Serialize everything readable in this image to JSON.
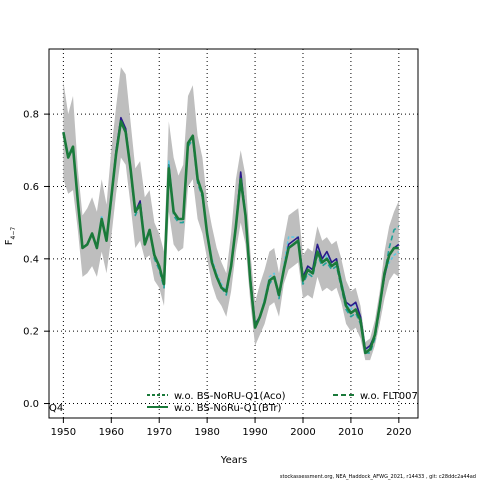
{
  "chart_data": {
    "type": "line",
    "xlabel": "Years",
    "ylabel_main": "F",
    "ylabel_sub": "4−7",
    "corner_label": "Q4",
    "footer": "stockassessment.org,  NEA_Haddock_AFWG_2021,  r14433 ,  git: c28ddc2a44ad",
    "xlim": [
      1947,
      2024
    ],
    "ylim": [
      -0.04,
      0.98
    ],
    "x_ticks": [
      1950,
      1960,
      1970,
      1980,
      1990,
      2000,
      2010,
      2020
    ],
    "y_ticks": [
      0.0,
      0.2,
      0.4,
      0.6,
      0.8
    ],
    "y_tick_labels": [
      "0.0",
      "0.2",
      "0.4",
      "0.6",
      "0.8"
    ],
    "grid": true,
    "legend_position": "bottom",
    "x": [
      1950,
      1951,
      1952,
      1953,
      1954,
      1955,
      1956,
      1957,
      1958,
      1959,
      1960,
      1961,
      1962,
      1963,
      1964,
      1965,
      1966,
      1967,
      1968,
      1969,
      1970,
      1971,
      1972,
      1973,
      1974,
      1975,
      1976,
      1977,
      1978,
      1979,
      1980,
      1981,
      1982,
      1983,
      1984,
      1985,
      1986,
      1987,
      1988,
      1989,
      1990,
      1991,
      1992,
      1993,
      1994,
      1995,
      1996,
      1997,
      1998,
      1999,
      2000,
      2001,
      2002,
      2003,
      2004,
      2005,
      2006,
      2007,
      2008,
      2009,
      2010,
      2011,
      2012,
      2013,
      2014,
      2015,
      2016,
      2017,
      2018,
      2019,
      2020
    ],
    "band": {
      "color": "#bebebe",
      "upper": [
        0.89,
        0.8,
        0.85,
        0.65,
        0.52,
        0.54,
        0.57,
        0.53,
        0.62,
        0.55,
        0.7,
        0.82,
        0.93,
        0.91,
        0.78,
        0.65,
        0.67,
        0.57,
        0.59,
        0.5,
        0.47,
        0.42,
        0.78,
        0.68,
        0.63,
        0.66,
        0.85,
        0.88,
        0.74,
        0.68,
        0.56,
        0.49,
        0.43,
        0.39,
        0.36,
        0.47,
        0.62,
        0.7,
        0.63,
        0.42,
        0.28,
        0.33,
        0.37,
        0.42,
        0.43,
        0.36,
        0.45,
        0.52,
        0.53,
        0.54,
        0.41,
        0.43,
        0.42,
        0.49,
        0.45,
        0.46,
        0.44,
        0.45,
        0.4,
        0.34,
        0.31,
        0.32,
        0.27,
        0.17,
        0.18,
        0.23,
        0.31,
        0.42,
        0.49,
        0.53,
        0.56
      ],
      "lower": [
        0.62,
        0.58,
        0.59,
        0.48,
        0.35,
        0.36,
        0.38,
        0.35,
        0.42,
        0.36,
        0.46,
        0.58,
        0.68,
        0.66,
        0.55,
        0.43,
        0.45,
        0.4,
        0.41,
        0.34,
        0.32,
        0.27,
        0.53,
        0.44,
        0.42,
        0.43,
        0.6,
        0.62,
        0.51,
        0.47,
        0.4,
        0.33,
        0.29,
        0.27,
        0.24,
        0.31,
        0.42,
        0.5,
        0.44,
        0.28,
        0.16,
        0.19,
        0.22,
        0.27,
        0.28,
        0.24,
        0.33,
        0.37,
        0.38,
        0.39,
        0.29,
        0.3,
        0.29,
        0.35,
        0.31,
        0.32,
        0.31,
        0.32,
        0.28,
        0.22,
        0.2,
        0.21,
        0.18,
        0.12,
        0.12,
        0.16,
        0.22,
        0.29,
        0.34,
        0.36,
        0.35
      ]
    },
    "series": [
      {
        "name": "w.o. BS-NoRU-Q1(Aco)",
        "color": "#60c8e0",
        "dash": "3,2",
        "values": [
          0.75,
          0.69,
          0.71,
          0.56,
          0.43,
          0.44,
          0.47,
          0.43,
          0.52,
          0.45,
          0.57,
          0.7,
          0.78,
          0.76,
          0.65,
          0.53,
          0.56,
          0.45,
          0.48,
          0.41,
          0.38,
          0.33,
          0.67,
          0.53,
          0.51,
          0.51,
          0.72,
          0.74,
          0.62,
          0.58,
          0.48,
          0.4,
          0.36,
          0.33,
          0.31,
          0.38,
          0.5,
          0.63,
          0.53,
          0.35,
          0.22,
          0.24,
          0.29,
          0.35,
          0.36,
          0.3,
          0.38,
          0.46,
          0.46,
          0.46,
          0.35,
          0.38,
          0.37,
          0.44,
          0.39,
          0.41,
          0.39,
          0.4,
          0.34,
          0.28,
          0.26,
          0.28,
          0.24,
          0.15,
          0.15,
          0.19,
          0.27,
          0.36,
          0.39,
          0.41,
          0.42
        ]
      },
      {
        "name": "w.o. BS-NoRu-Q1(BTr)",
        "color": "#2a1a8a",
        "dash": "",
        "values": [
          0.75,
          0.68,
          0.71,
          0.56,
          0.43,
          0.44,
          0.47,
          0.43,
          0.51,
          0.45,
          0.57,
          0.7,
          0.79,
          0.76,
          0.65,
          0.53,
          0.56,
          0.44,
          0.48,
          0.41,
          0.38,
          0.33,
          0.66,
          0.53,
          0.51,
          0.51,
          0.72,
          0.74,
          0.62,
          0.58,
          0.47,
          0.39,
          0.35,
          0.32,
          0.31,
          0.38,
          0.49,
          0.64,
          0.52,
          0.35,
          0.22,
          0.24,
          0.28,
          0.34,
          0.35,
          0.3,
          0.37,
          0.44,
          0.45,
          0.46,
          0.35,
          0.38,
          0.37,
          0.44,
          0.4,
          0.42,
          0.39,
          0.4,
          0.33,
          0.28,
          0.27,
          0.28,
          0.24,
          0.15,
          0.16,
          0.19,
          0.27,
          0.35,
          0.41,
          0.43,
          0.44
        ]
      },
      {
        "name": "w.o. FLT007",
        "color": "#1ea39a",
        "dash": "5,3",
        "values": [
          0.75,
          0.68,
          0.7,
          0.56,
          0.43,
          0.44,
          0.47,
          0.43,
          0.51,
          0.45,
          0.56,
          0.69,
          0.78,
          0.75,
          0.64,
          0.52,
          0.55,
          0.44,
          0.48,
          0.4,
          0.37,
          0.32,
          0.66,
          0.52,
          0.5,
          0.5,
          0.71,
          0.73,
          0.61,
          0.57,
          0.47,
          0.39,
          0.35,
          0.32,
          0.3,
          0.38,
          0.49,
          0.61,
          0.52,
          0.34,
          0.21,
          0.24,
          0.28,
          0.33,
          0.35,
          0.29,
          0.37,
          0.43,
          0.44,
          0.45,
          0.33,
          0.36,
          0.35,
          0.41,
          0.38,
          0.39,
          0.37,
          0.38,
          0.32,
          0.26,
          0.24,
          0.25,
          0.22,
          0.14,
          0.14,
          0.18,
          0.26,
          0.36,
          0.43,
          0.48,
          0.49
        ]
      },
      {
        "name": "",
        "color": "#1a7a3a",
        "dash": "",
        "values": [
          0.75,
          0.68,
          0.71,
          0.56,
          0.43,
          0.44,
          0.47,
          0.43,
          0.51,
          0.45,
          0.57,
          0.69,
          0.78,
          0.75,
          0.65,
          0.53,
          0.55,
          0.44,
          0.48,
          0.41,
          0.38,
          0.33,
          0.65,
          0.53,
          0.51,
          0.51,
          0.72,
          0.74,
          0.62,
          0.58,
          0.47,
          0.39,
          0.35,
          0.32,
          0.31,
          0.38,
          0.49,
          0.62,
          0.52,
          0.34,
          0.21,
          0.24,
          0.28,
          0.34,
          0.35,
          0.3,
          0.37,
          0.43,
          0.44,
          0.45,
          0.34,
          0.37,
          0.36,
          0.42,
          0.39,
          0.4,
          0.38,
          0.39,
          0.33,
          0.27,
          0.25,
          0.26,
          0.23,
          0.14,
          0.15,
          0.19,
          0.27,
          0.36,
          0.41,
          0.43,
          0.43
        ]
      }
    ],
    "legend": [
      {
        "label": "w.o. BS-NoRU-Q1(Aco)",
        "color": "#1a7a3a",
        "dash": "3,2"
      },
      {
        "label": "w.o. BS-NoRu-Q1(BTr)",
        "color": "#1a7a3a",
        "dash": ""
      },
      {
        "label": "w.o. FLT007",
        "color": "#1a7a3a",
        "dash": "5,3"
      }
    ]
  }
}
